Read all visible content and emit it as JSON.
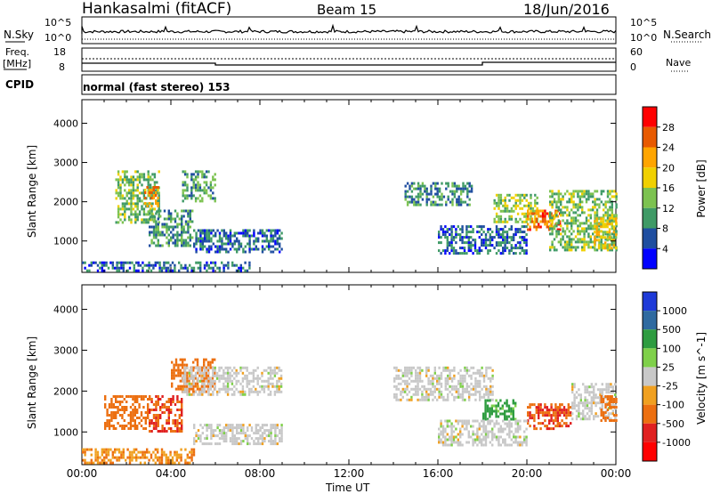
{
  "header": {
    "station": "Hankasalmi (fitACF)",
    "beam": "Beam 15",
    "date": "18/Jun/2016"
  },
  "noise_panel": {
    "left_label": "N.Sky",
    "right_label": "N.Search",
    "left_ticks": [
      "10^5",
      "10^0"
    ],
    "right_ticks": [
      "10^5",
      "10^0"
    ]
  },
  "freq_panel": {
    "left_label_line1": "Freq.",
    "left_label_line2": "[MHz]",
    "left_ticks": [
      "18",
      "8"
    ],
    "right_label": "Nave",
    "right_ticks": [
      "60",
      "0"
    ]
  },
  "cpid_panel": {
    "label": "CPID",
    "text": "normal (fast stereo) 153"
  },
  "x_axis": {
    "label": "Time UT",
    "ticks": [
      "00:00",
      "04:00",
      "08:00",
      "12:00",
      "16:00",
      "20:00",
      "00:00"
    ]
  },
  "power_colorbar": {
    "label": "Power [dB]",
    "ticks": [
      "28",
      "24",
      "20",
      "16",
      "12",
      "8",
      "4"
    ],
    "colors": [
      "#ff0000",
      "#e85a00",
      "#ffa500",
      "#f0d000",
      "#7cc250",
      "#3f9a66",
      "#1f4ea0",
      "#0000ff"
    ]
  },
  "velocity_colorbar": {
    "label": "Velocity [m s^-1]",
    "ticks": [
      "1000",
      "500",
      "100",
      "25",
      "-25",
      "-100",
      "-500",
      "-1000"
    ],
    "colors": [
      "#1e3ad8",
      "#2f6aa0",
      "#2e9c40",
      "#7fd04a",
      "#c8c8c8",
      "#f0a020",
      "#ec6f10",
      "#e02020",
      "#ff0000"
    ]
  },
  "chart_data": [
    {
      "type": "heatmap",
      "title": "Power",
      "ylabel": "Slant Range [km]",
      "xlabel": "",
      "y_ticks": [
        "1000",
        "2000",
        "3000",
        "4000"
      ],
      "ylim": [
        200,
        4600
      ],
      "xlim_hours": [
        0,
        24
      ],
      "colorbar_unit": "dB",
      "colorbar_range": [
        1,
        31
      ],
      "regions": [
        {
          "t0": 0.0,
          "t1": 7.5,
          "r0": 220,
          "r1": 480,
          "value": 6
        },
        {
          "t0": 1.5,
          "t1": 3.5,
          "r0": 1500,
          "r1": 2800,
          "value": 12
        },
        {
          "t0": 2.8,
          "t1": 3.4,
          "r0": 1900,
          "r1": 2400,
          "value": 22
        },
        {
          "t0": 3.0,
          "t1": 5.0,
          "r0": 900,
          "r1": 1800,
          "value": 9
        },
        {
          "t0": 4.5,
          "t1": 6.0,
          "r0": 2000,
          "r1": 2800,
          "value": 10
        },
        {
          "t0": 5.0,
          "t1": 9.0,
          "r0": 700,
          "r1": 1300,
          "value": 6
        },
        {
          "t0": 14.5,
          "t1": 17.5,
          "r0": 1900,
          "r1": 2500,
          "value": 8
        },
        {
          "t0": 18.5,
          "t1": 20.5,
          "r0": 1500,
          "r1": 2200,
          "value": 14
        },
        {
          "t0": 20.0,
          "t1": 21.5,
          "r0": 1300,
          "r1": 1800,
          "value": 24
        },
        {
          "t0": 21.0,
          "t1": 24.0,
          "r0": 800,
          "r1": 2300,
          "value": 12
        },
        {
          "t0": 23.0,
          "t1": 24.0,
          "r0": 800,
          "r1": 1600,
          "value": 18
        },
        {
          "t0": 16.0,
          "t1": 20.0,
          "r0": 700,
          "r1": 1400,
          "value": 6
        }
      ]
    },
    {
      "type": "heatmap",
      "title": "Velocity",
      "ylabel": "Slant Range [km]",
      "xlabel": "Time UT",
      "y_ticks": [
        "1000",
        "2000",
        "3000",
        "4000"
      ],
      "ylim": [
        200,
        4600
      ],
      "xlim_hours": [
        0,
        24
      ],
      "colorbar_unit": "m s^-1",
      "regions": [
        {
          "t0": 1.0,
          "t1": 3.0,
          "r0": 1100,
          "r1": 1900,
          "value": -200
        },
        {
          "t0": 3.0,
          "t1": 4.5,
          "r0": 1000,
          "r1": 1900,
          "value": -300
        },
        {
          "t0": 4.0,
          "t1": 6.0,
          "r0": 2000,
          "r1": 2800,
          "value": -150
        },
        {
          "t0": 4.5,
          "t1": 9.0,
          "r0": 1900,
          "r1": 2600,
          "value": 0
        },
        {
          "t0": 5.0,
          "t1": 9.0,
          "r0": 700,
          "r1": 1200,
          "value": 0
        },
        {
          "t0": 0.0,
          "t1": 5.0,
          "r0": 220,
          "r1": 600,
          "value": -60
        },
        {
          "t0": 14.0,
          "t1": 18.5,
          "r0": 1800,
          "r1": 2600,
          "value": 0
        },
        {
          "t0": 18.0,
          "t1": 19.5,
          "r0": 1300,
          "r1": 1800,
          "value": 80
        },
        {
          "t0": 20.0,
          "t1": 22.0,
          "r0": 1100,
          "r1": 1700,
          "value": -300
        },
        {
          "t0": 22.0,
          "t1": 24.0,
          "r0": 1300,
          "r1": 2200,
          "value": 0
        },
        {
          "t0": 23.3,
          "t1": 24.0,
          "r0": 1300,
          "r1": 1900,
          "value": -200
        },
        {
          "t0": 16.0,
          "t1": 20.0,
          "r0": 700,
          "r1": 1300,
          "value": 0
        }
      ]
    }
  ]
}
